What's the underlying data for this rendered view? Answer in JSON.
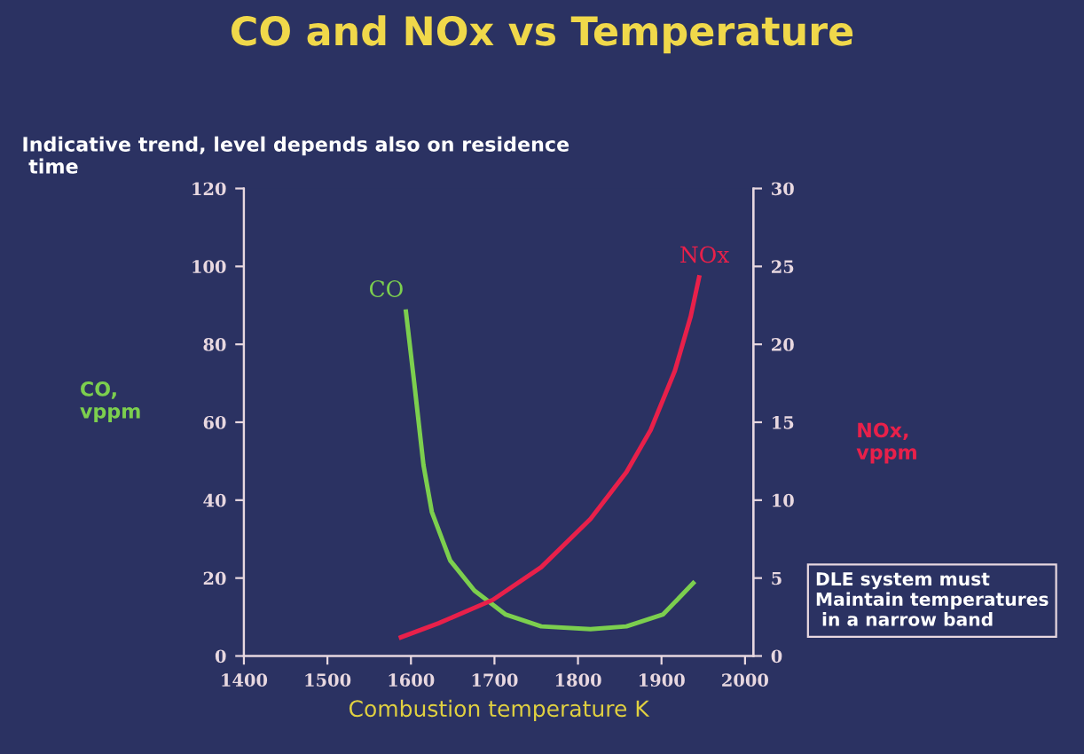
{
  "chart_data": {
    "type": "line",
    "title": "CO and NOx vs Temperature",
    "subtitle": "Indicative trend, level depends also on residence\n time",
    "xlabel": "Combustion temperature K",
    "ylabel": "CO,\nvppm",
    "y2label": "NOx,\nvppm",
    "annotations": [
      "DLE system must\nMaintain temperatures\n in a narrow band"
    ],
    "series": [
      {
        "name": "CO",
        "color": "#7ccf4e",
        "x": [
          1594,
          1604,
          1615,
          1625,
          1647,
          1676,
          1713,
          1756,
          1815,
          1858,
          1902,
          1938
        ],
        "values": [
          88.4,
          70,
          49,
          37,
          24.5,
          16.8,
          10.7,
          7.6,
          6.9,
          7.6,
          10.7,
          18.7
        ]
      },
      {
        "name": "NOx",
        "color": "#e8204a",
        "axis": "y2",
        "x": [
          1588,
          1633,
          1698,
          1756,
          1815,
          1858,
          1887,
          1916,
          1935,
          1945
        ],
        "values": [
          1.2,
          2.1,
          3.6,
          5.7,
          8.8,
          11.8,
          14.5,
          18.3,
          21.8,
          24.3
        ]
      }
    ],
    "xlim": [
      1400,
      2010
    ],
    "xticks": [
      1400,
      1500,
      1600,
      1700,
      1800,
      1900,
      2000
    ],
    "ylim": [
      0,
      120
    ],
    "yticks": [
      0,
      20,
      40,
      60,
      80,
      100,
      120
    ],
    "y2lim": [
      0,
      30
    ],
    "y2ticks": [
      0,
      5,
      10,
      15,
      20,
      25,
      30
    ],
    "grid": false,
    "legend": false,
    "marker": "none",
    "line_style": "solid"
  }
}
